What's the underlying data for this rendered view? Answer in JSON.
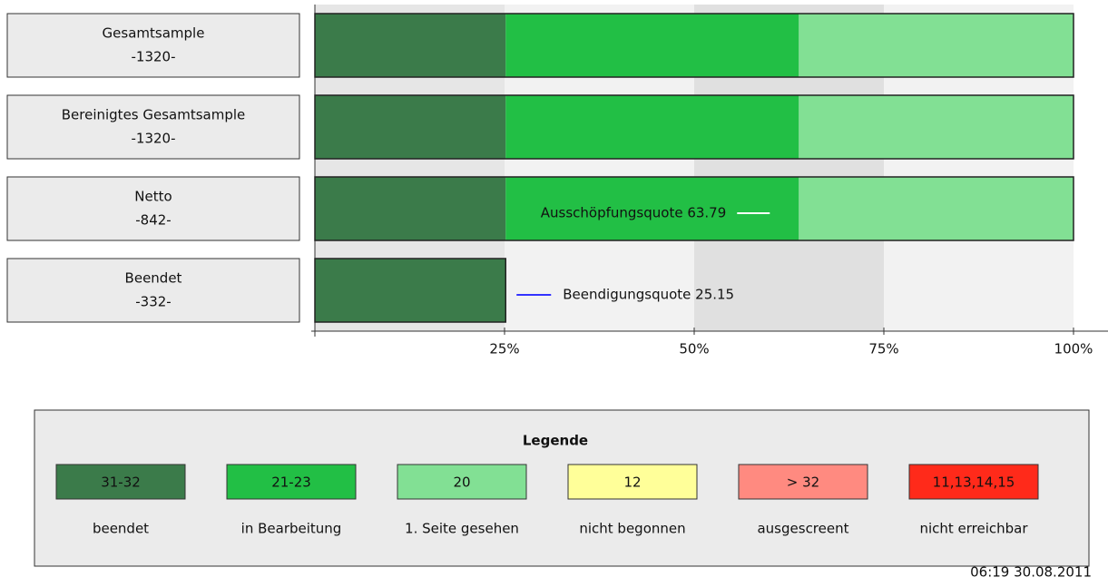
{
  "chart_data": {
    "type": "stacked-barh",
    "categories": [
      "Gesamtsample",
      "Bereinigtes Gesamtsample",
      "Netto",
      "Beendet"
    ],
    "sublabels": [
      "-1320-",
      "-1320-",
      "-842-",
      "-332-"
    ],
    "series": [
      {
        "color": "#3b7b4a",
        "values": [
          25.15,
          25.15,
          25.15,
          25.15
        ]
      },
      {
        "color": "#22bf45",
        "values": [
          38.64,
          38.64,
          38.64,
          null
        ]
      },
      {
        "color": "#82e094",
        "values": [
          36.21,
          36.21,
          36.21,
          null
        ]
      }
    ],
    "xlim": [
      0,
      100
    ],
    "xticks": [
      {
        "value": 25,
        "label": "25%"
      },
      {
        "value": 50,
        "label": "50%"
      },
      {
        "value": 75,
        "label": "75%"
      },
      {
        "value": 100,
        "label": "100%"
      }
    ],
    "annotations": [
      {
        "text": "Ausschöpfungsquote 63.79",
        "x": 63.79,
        "row": 2,
        "color": "#ffffff",
        "side": "left"
      },
      {
        "text": "Beendigungsquote 25.15",
        "x": 25.15,
        "row": 3,
        "color": "#3333ff",
        "side": "right"
      }
    ],
    "legend": {
      "title": "Legende",
      "items": [
        {
          "code": "31-32",
          "label": "beendet",
          "color": "#3b7b4a"
        },
        {
          "code": "21-23",
          "label": "in Bearbeitung",
          "color": "#22bf45"
        },
        {
          "code": "20",
          "label": "1. Seite gesehen",
          "color": "#82e094"
        },
        {
          "code": "12",
          "label": "nicht begonnen",
          "color": "#ffff99"
        },
        {
          "code": "> 32",
          "label": "ausgescreent",
          "color": "#ff8a80"
        },
        {
          "code": "11,13,14,15",
          "label": "nicht erreichbar",
          "color": "#ff2a1a"
        }
      ]
    },
    "timestamp": "06:19 30.08.2011"
  }
}
